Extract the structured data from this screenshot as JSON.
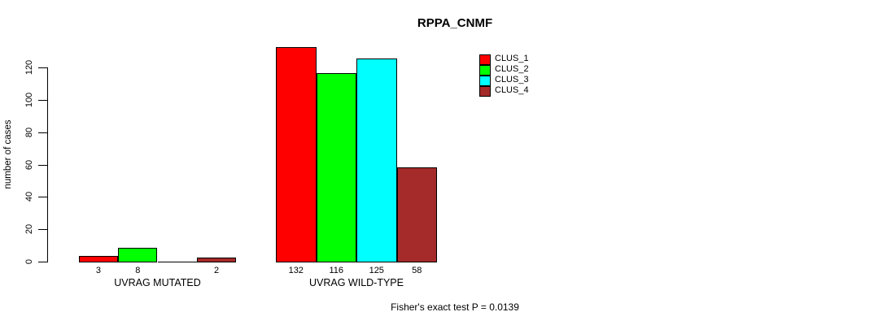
{
  "title": "RPPA_CNMF",
  "footer": "Fisher's exact test P = 0.0139",
  "chart_data": {
    "type": "bar",
    "title": "RPPA_CNMF",
    "xlabel": "",
    "ylabel": "number of cases",
    "ylim": [
      0,
      120
    ],
    "yticks": [
      0,
      20,
      40,
      60,
      80,
      100,
      120
    ],
    "grid": false,
    "legend_position": "top-right",
    "categories": [
      "UVRAG MUTATED",
      "UVRAG WILD-TYPE"
    ],
    "series": [
      {
        "name": "CLUS_1",
        "color": "#FF0000",
        "values": [
          3,
          132
        ]
      },
      {
        "name": "CLUS_2",
        "color": "#00FF00",
        "values": [
          8,
          116
        ]
      },
      {
        "name": "CLUS_3",
        "color": "#00FFFF",
        "values": [
          0,
          125
        ]
      },
      {
        "name": "CLUS_4",
        "color": "#A52A2A",
        "values": [
          2,
          58
        ]
      }
    ],
    "bar_value_labels": [
      [
        "3",
        "8",
        "",
        "2"
      ],
      [
        "132",
        "116",
        "125",
        "58"
      ]
    ],
    "annotation": "Fisher's exact test P = 0.0139"
  }
}
